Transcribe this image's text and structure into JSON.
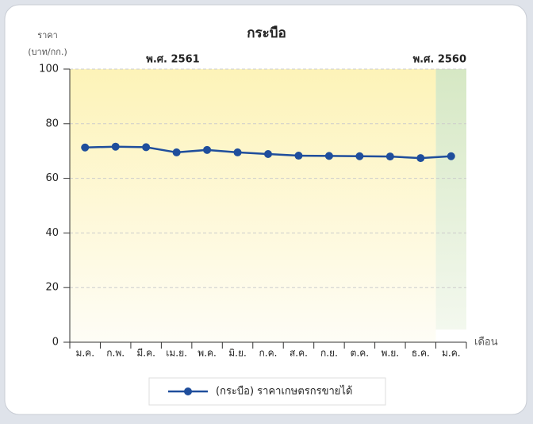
{
  "chart_data": {
    "type": "line",
    "title": "กระบือ",
    "y_label": "ราคา",
    "y_unit": "(บาท/กก.)",
    "x_label": "เดือน",
    "annotations": [
      {
        "text": "พ.ศ. 2561",
        "color": "#c9a227"
      },
      {
        "text": "พ.ศ. 2560",
        "color": "#5a8a2a"
      }
    ],
    "categories": [
      "ม.ค.",
      "ก.พ.",
      "มี.ค.",
      "เม.ย.",
      "พ.ค.",
      "มิ.ย.",
      "ก.ค.",
      "ส.ค.",
      "ก.ย.",
      "ต.ค.",
      "พ.ย.",
      "ธ.ค.",
      "ม.ค."
    ],
    "series": [
      {
        "name": "(กระบือ) ราคาเกษตรกรขายได้",
        "color": "#1f4e9c",
        "values": [
          71.3,
          71.6,
          71.4,
          69.5,
          70.4,
          69.5,
          68.9,
          68.3,
          68.2,
          68.1,
          68.0,
          67.4,
          68.1
        ]
      }
    ],
    "ylim": [
      0,
      100
    ],
    "yticks": [
      0,
      20,
      40,
      60,
      80,
      100
    ],
    "grid": true,
    "legend": "bottom"
  }
}
